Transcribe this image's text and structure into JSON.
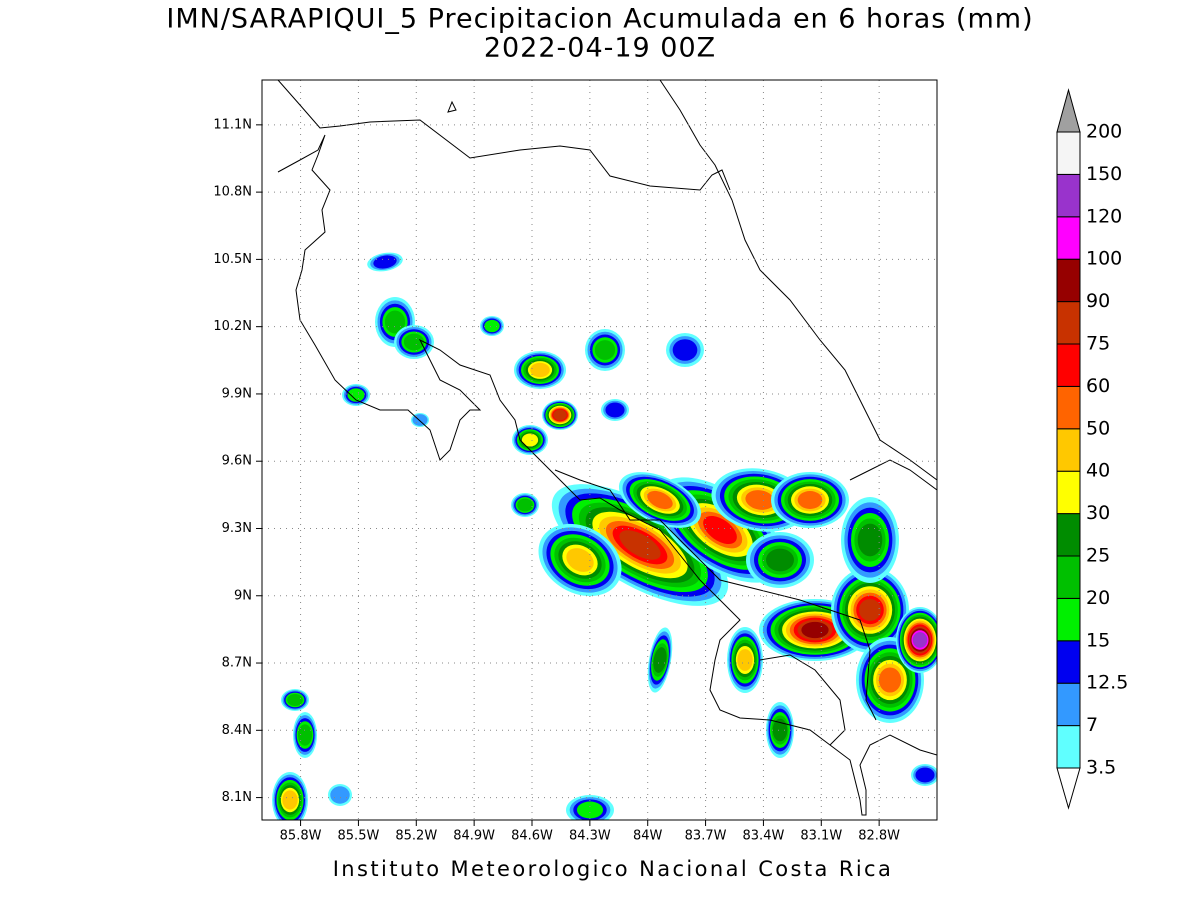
{
  "title": "IMN/SARAPIQUI_5 Precipitacion Acumulada en 6 horas (mm)",
  "subtitle": "2022-04-19 00Z",
  "credit": "Instituto Meteorologico Nacional Costa Rica",
  "map": {
    "xlim": [
      -86.0,
      -82.5
    ],
    "ylim": [
      8.0,
      11.3
    ],
    "grid": true,
    "xticks": [
      {
        "value": -85.8,
        "label": "85.8W"
      },
      {
        "value": -85.5,
        "label": "85.5W"
      },
      {
        "value": -85.2,
        "label": "85.2W"
      },
      {
        "value": -84.9,
        "label": "84.9W"
      },
      {
        "value": -84.6,
        "label": "84.6W"
      },
      {
        "value": -84.3,
        "label": "84.3W"
      },
      {
        "value": -84.0,
        "label": "84W"
      },
      {
        "value": -83.7,
        "label": "83.7W"
      },
      {
        "value": -83.4,
        "label": "83.4W"
      },
      {
        "value": -83.1,
        "label": "83.1W"
      },
      {
        "value": -82.8,
        "label": "82.8W"
      }
    ],
    "yticks": [
      {
        "value": 8.1,
        "label": "8.1N"
      },
      {
        "value": 8.4,
        "label": "8.4N"
      },
      {
        "value": 8.7,
        "label": "8.7N"
      },
      {
        "value": 9.0,
        "label": "9N"
      },
      {
        "value": 9.3,
        "label": "9.3N"
      },
      {
        "value": 9.6,
        "label": "9.6N"
      },
      {
        "value": 9.9,
        "label": "9.9N"
      },
      {
        "value": 10.2,
        "label": "10.2N"
      },
      {
        "value": 10.5,
        "label": "10.5N"
      },
      {
        "value": 10.8,
        "label": "10.8N"
      },
      {
        "value": 11.1,
        "label": "11.1N"
      }
    ]
  },
  "colorbar": {
    "levels": [
      3.5,
      7,
      12.5,
      15,
      20,
      25,
      30,
      40,
      50,
      60,
      75,
      90,
      100,
      120,
      150,
      200
    ],
    "colors": [
      "#ffffff",
      "#60ffff",
      "#3399ff",
      "#0000f0",
      "#00f000",
      "#00c000",
      "#008c00",
      "#ffff00",
      "#ffc800",
      "#ff6400",
      "#ff0000",
      "#c83200",
      "#960000",
      "#ff00ff",
      "#9933cc",
      "#f5f5f5",
      "#a0a0a0"
    ]
  }
}
